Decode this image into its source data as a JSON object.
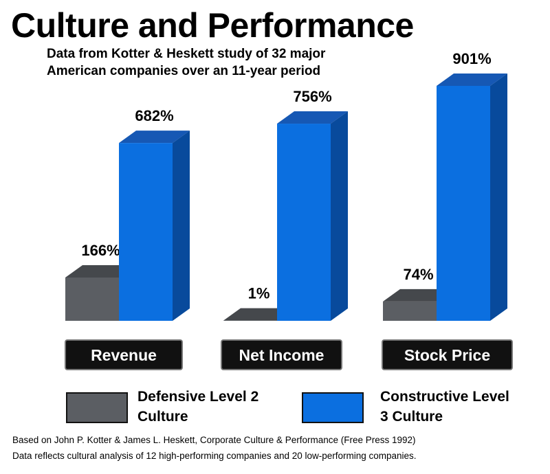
{
  "chart_data": {
    "type": "bar3d",
    "title": "Culture and Performance",
    "subtitle": "Data from Kotter & Heskett  study of 32 major American companies over an 11-year period",
    "categories": [
      "Revenue",
      "Net Income",
      "Stock Price"
    ],
    "series": [
      {
        "name": "Defensive Level 2 Culture",
        "color": "#5b5e63",
        "values": [
          166,
          1,
          74
        ],
        "value_labels": [
          "166%",
          "1%",
          "74%"
        ]
      },
      {
        "name": "Constructive Level 3 Culture",
        "color": "#0b6fe0",
        "values": [
          682,
          756,
          901
        ],
        "value_labels": [
          "682%",
          "756%",
          "901%"
        ]
      }
    ],
    "notes": [
      "Based on John P. Kotter & James L. Heskett, Corporate Culture & Performance (Free Press 1992)",
      "Data reflects cultural analysis of 12 high-performing companies and 20 low-performing companies."
    ]
  }
}
